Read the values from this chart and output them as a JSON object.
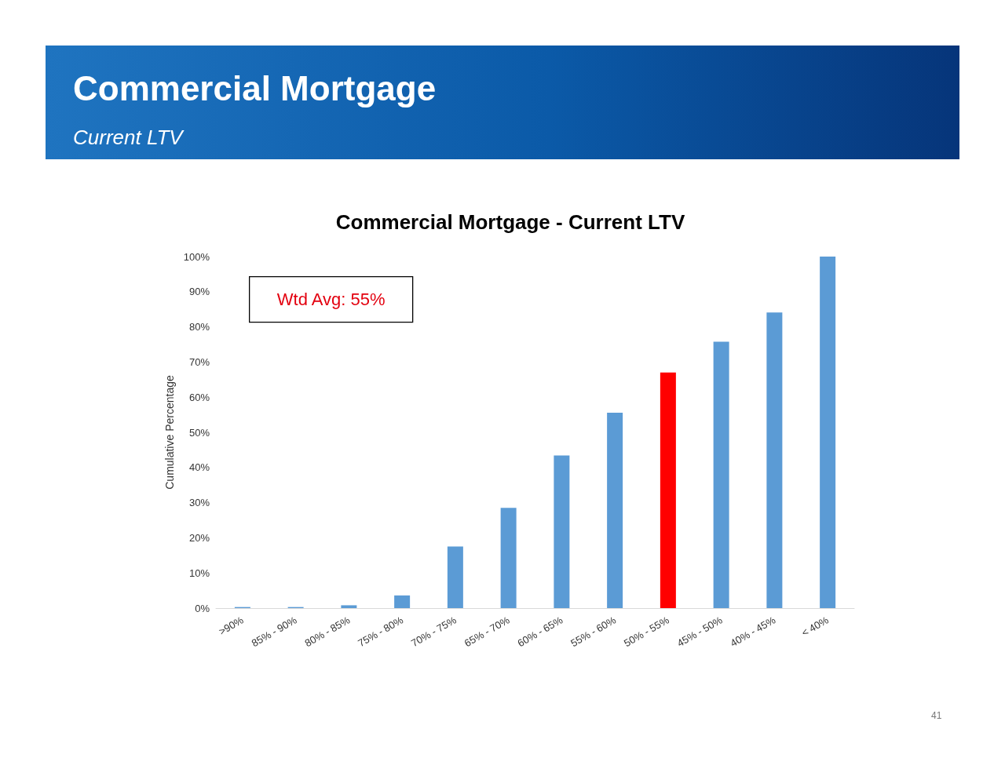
{
  "chart_data": {
    "type": "bar",
    "title": "Commercial Mortgage",
    "subtitle": "Current LTV",
    "ylabel": "Cumulative Percentage",
    "categories": [
      ">90%",
      "85% - 90%",
      "80% - 85%",
      "75% - 80%",
      "70% - 75%",
      "65% - 70%",
      "60% - 65%",
      "55% - 60%",
      "50% - 55%",
      "45% - 50%",
      "40% - 45%",
      "< 40%"
    ],
    "values": [
      0.3,
      0.3,
      0.8,
      3.6,
      17.5,
      28.5,
      43.4,
      55.6,
      67.0,
      75.8,
      84.1,
      100
    ],
    "colors": [
      "#5b9bd5",
      "#5b9bd5",
      "#5b9bd5",
      "#5b9bd5",
      "#5b9bd5",
      "#5b9bd5",
      "#5b9bd5",
      "#5b9bd5",
      "#ff0000",
      "#5b9bd5",
      "#5b9bd5",
      "#5b9bd5"
    ],
    "ylim": [
      0,
      100
    ],
    "yticks": [
      {
        "value": 0,
        "label": "0%"
      },
      {
        "value": 10,
        "label": "10%"
      },
      {
        "value": 20,
        "label": "20%"
      },
      {
        "value": 30,
        "label": "30%"
      },
      {
        "value": 40,
        "label": "40%"
      },
      {
        "value": 50,
        "label": "50%"
      },
      {
        "value": 60,
        "label": "60%"
      },
      {
        "value": 70,
        "label": "70%"
      },
      {
        "value": 80,
        "label": "80%"
      },
      {
        "value": 90,
        "label": "90%"
      },
      {
        "value": 100,
        "label": "100%"
      }
    ],
    "annotations": [
      "Commercial Mortgage - Current LTV",
      "Wtd Avg: 55%",
      "41"
    ],
    "grid": false
  }
}
